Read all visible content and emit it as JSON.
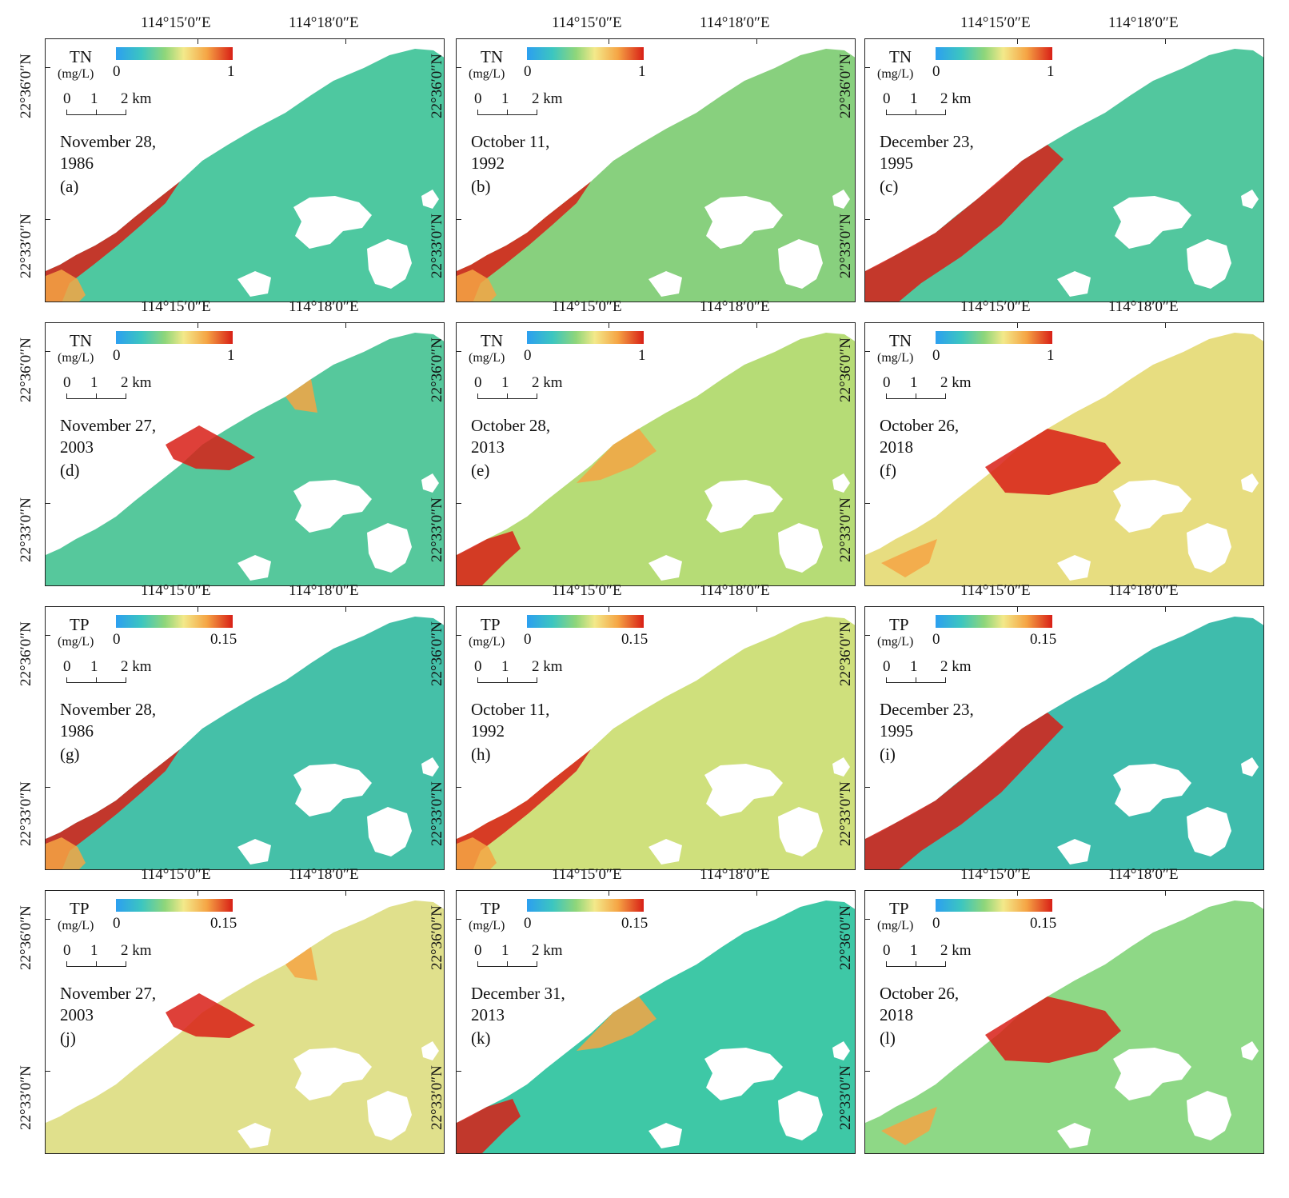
{
  "figure": {
    "lon_labels": [
      "114°15′0″E",
      "114°18′0″E"
    ],
    "lat_labels": [
      "22°36′0″N",
      "22°33′0″N"
    ],
    "unit": "(mg/L)",
    "scale_labels": [
      "0",
      "1",
      "2 km"
    ],
    "colormap": [
      "#2c9ff0",
      "#3cc6c0",
      "#8fd67a",
      "#f3e98a",
      "#f5a444",
      "#d81f16"
    ],
    "land_color": "#ffffff"
  },
  "panels": [
    {
      "variable": "TN",
      "cmin": "0",
      "cmax": "1",
      "date1": "November 28,",
      "date2": "1986",
      "label": "(a)",
      "base": "#4ec8a0",
      "pollution": "coast"
    },
    {
      "variable": "TN",
      "cmin": "0",
      "cmax": "1",
      "date1": "October 11,",
      "date2": "1992",
      "label": "(b)",
      "base": "#88d07e",
      "pollution": "coast"
    },
    {
      "variable": "TN",
      "cmin": "0",
      "cmax": "1",
      "date1": "December 23,",
      "date2": "1995",
      "label": "(c)",
      "base": "#52c79e",
      "pollution": "southwest"
    },
    {
      "variable": "TN",
      "cmin": "0",
      "cmax": "1",
      "date1": "November 27,",
      "date2": "2003",
      "label": "(d)",
      "base": "#56c89c",
      "pollution": "harbor"
    },
    {
      "variable": "TN",
      "cmin": "0",
      "cmax": "1",
      "date1": "October 28,",
      "date2": "2013",
      "label": "(e)",
      "base": "#b6dc76",
      "pollution": "piers"
    },
    {
      "variable": "TN",
      "cmin": "0",
      "cmax": "1",
      "date1": "October 26,",
      "date2": "2018",
      "label": "(f)",
      "base": "#e7dd80",
      "pollution": "bay"
    },
    {
      "variable": "TP",
      "cmin": "0",
      "cmax": "0.15",
      "date1": "November 28,",
      "date2": "1986",
      "label": "(g)",
      "base": "#45c0a8",
      "pollution": "coast"
    },
    {
      "variable": "TP",
      "cmin": "0",
      "cmax": "0.15",
      "date1": "October 11,",
      "date2": "1992",
      "label": "(h)",
      "base": "#cfe07c",
      "pollution": "coast"
    },
    {
      "variable": "TP",
      "cmin": "0",
      "cmax": "0.15",
      "date1": "December 23,",
      "date2": "1995",
      "label": "(i)",
      "base": "#3fbcac",
      "pollution": "southwest"
    },
    {
      "variable": "TP",
      "cmin": "0",
      "cmax": "0.15",
      "date1": "November 27,",
      "date2": "2003",
      "label": "(j)",
      "base": "#e0e08c",
      "pollution": "harbor"
    },
    {
      "variable": "TP",
      "cmin": "0",
      "cmax": "0.15",
      "date1": "December 31,",
      "date2": "2013",
      "label": "(k)",
      "base": "#3ec8a6",
      "pollution": "piers"
    },
    {
      "variable": "TP",
      "cmin": "0",
      "cmax": "0.15",
      "date1": "October 26,",
      "date2": "2018",
      "label": "(l)",
      "base": "#8ed886",
      "pollution": "bay"
    }
  ]
}
